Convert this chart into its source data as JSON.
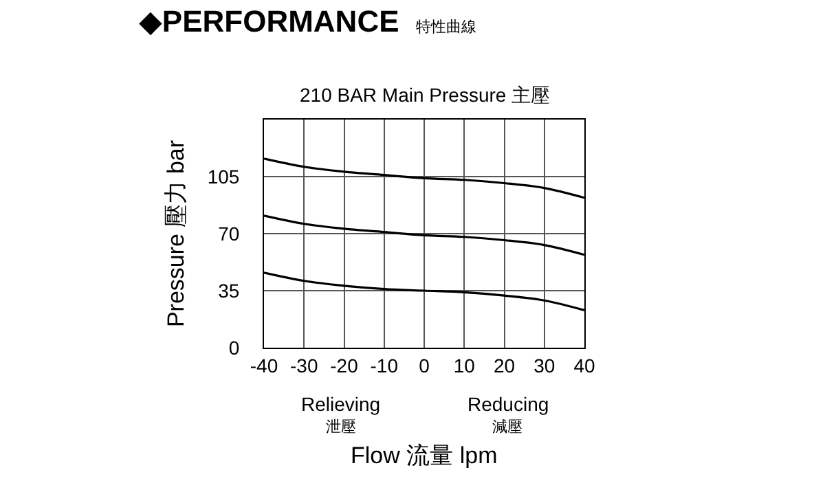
{
  "chart_data": {
    "type": "line",
    "title": "◆PERFORMANCE",
    "subtitle": "特性曲線",
    "annotations": [
      "210 BAR Main Pressure 主壓",
      "Relieving",
      "泄壓",
      "Reducing",
      "減壓"
    ],
    "xlabel": "Flow 流量 lpm",
    "ylabel": "Pressure 壓力 bar",
    "x": [
      -40,
      -30,
      -20,
      -10,
      0,
      10,
      20,
      30,
      40
    ],
    "series": [
      {
        "color": "#000000",
        "values": [
          116,
          111,
          108,
          106,
          104,
          103,
          101,
          98,
          92
        ]
      },
      {
        "color": "#000000",
        "values": [
          81,
          76,
          73,
          71,
          69,
          68,
          66,
          63,
          57
        ]
      },
      {
        "color": "#000000",
        "values": [
          46,
          41,
          38,
          36,
          35,
          34,
          32,
          29,
          23
        ]
      }
    ],
    "xlim": [
      -40,
      40
    ],
    "xticks": [
      -40,
      -30,
      -20,
      -10,
      0,
      10,
      20,
      30,
      40
    ],
    "ylim": [
      0,
      140
    ],
    "yticks": [
      0,
      35,
      70,
      105
    ],
    "grid": true,
    "marker": "none",
    "line_style": "solid"
  }
}
